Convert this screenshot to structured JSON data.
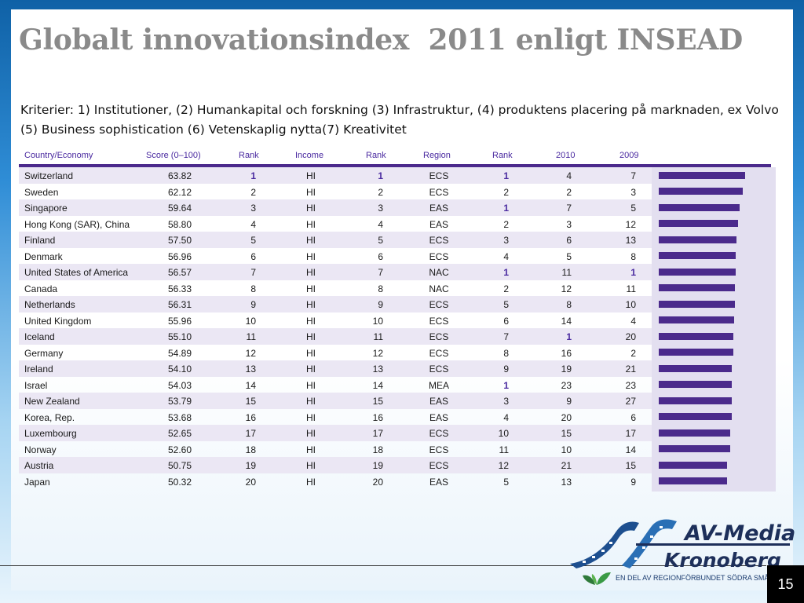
{
  "title": "Globalt innovationsindex  2011 enligt INSEAD",
  "criteria": "Kriterier: 1) Institutioner, (2) Humankapital och forskning (3) Infrastruktur, (4) produktens placering på marknaden, ex Volvo  (5) Business sophistication (6) Vetenskaplig nytta(7) Kreativitet",
  "table": {
    "headers": [
      "Country/Economy",
      "Score (0–100)",
      "Rank",
      "Income",
      "Rank",
      "Region",
      "Rank",
      "2010",
      "2009"
    ],
    "rows": [
      {
        "country": "Switzerland",
        "score": "63.82",
        "rank": "1",
        "income": "HI",
        "income_rank": "1",
        "region": "ECS",
        "region_rank": "1",
        "y2010": "4",
        "y2009": "7"
      },
      {
        "country": "Sweden",
        "score": "62.12",
        "rank": "2",
        "income": "HI",
        "income_rank": "2",
        "region": "ECS",
        "region_rank": "2",
        "y2010": "2",
        "y2009": "3"
      },
      {
        "country": "Singapore",
        "score": "59.64",
        "rank": "3",
        "income": "HI",
        "income_rank": "3",
        "region": "EAS",
        "region_rank": "1",
        "y2010": "7",
        "y2009": "5"
      },
      {
        "country": "Hong Kong (SAR), China",
        "score": "58.80",
        "rank": "4",
        "income": "HI",
        "income_rank": "4",
        "region": "EAS",
        "region_rank": "2",
        "y2010": "3",
        "y2009": "12"
      },
      {
        "country": "Finland",
        "score": "57.50",
        "rank": "5",
        "income": "HI",
        "income_rank": "5",
        "region": "ECS",
        "region_rank": "3",
        "y2010": "6",
        "y2009": "13"
      },
      {
        "country": "Denmark",
        "score": "56.96",
        "rank": "6",
        "income": "HI",
        "income_rank": "6",
        "region": "ECS",
        "region_rank": "4",
        "y2010": "5",
        "y2009": "8"
      },
      {
        "country": "United States of America",
        "score": "56.57",
        "rank": "7",
        "income": "HI",
        "income_rank": "7",
        "region": "NAC",
        "region_rank": "1",
        "y2010": "11",
        "y2009": "1"
      },
      {
        "country": "Canada",
        "score": "56.33",
        "rank": "8",
        "income": "HI",
        "income_rank": "8",
        "region": "NAC",
        "region_rank": "2",
        "y2010": "12",
        "y2009": "11"
      },
      {
        "country": "Netherlands",
        "score": "56.31",
        "rank": "9",
        "income": "HI",
        "income_rank": "9",
        "region": "ECS",
        "region_rank": "5",
        "y2010": "8",
        "y2009": "10"
      },
      {
        "country": "United Kingdom",
        "score": "55.96",
        "rank": "10",
        "income": "HI",
        "income_rank": "10",
        "region": "ECS",
        "region_rank": "6",
        "y2010": "14",
        "y2009": "4"
      },
      {
        "country": "Iceland",
        "score": "55.10",
        "rank": "11",
        "income": "HI",
        "income_rank": "11",
        "region": "ECS",
        "region_rank": "7",
        "y2010": "1",
        "y2009": "20"
      },
      {
        "country": "Germany",
        "score": "54.89",
        "rank": "12",
        "income": "HI",
        "income_rank": "12",
        "region": "ECS",
        "region_rank": "8",
        "y2010": "16",
        "y2009": "2"
      },
      {
        "country": "Ireland",
        "score": "54.10",
        "rank": "13",
        "income": "HI",
        "income_rank": "13",
        "region": "ECS",
        "region_rank": "9",
        "y2010": "19",
        "y2009": "21"
      },
      {
        "country": "Israel",
        "score": "54.03",
        "rank": "14",
        "income": "HI",
        "income_rank": "14",
        "region": "MEA",
        "region_rank": "1",
        "y2010": "23",
        "y2009": "23"
      },
      {
        "country": "New Zealand",
        "score": "53.79",
        "rank": "15",
        "income": "HI",
        "income_rank": "15",
        "region": "EAS",
        "region_rank": "3",
        "y2010": "9",
        "y2009": "27"
      },
      {
        "country": "Korea, Rep.",
        "score": "53.68",
        "rank": "16",
        "income": "HI",
        "income_rank": "16",
        "region": "EAS",
        "region_rank": "4",
        "y2010": "20",
        "y2009": "6"
      },
      {
        "country": "Luxembourg",
        "score": "52.65",
        "rank": "17",
        "income": "HI",
        "income_rank": "17",
        "region": "ECS",
        "region_rank": "10",
        "y2010": "15",
        "y2009": "17"
      },
      {
        "country": "Norway",
        "score": "52.60",
        "rank": "18",
        "income": "HI",
        "income_rank": "18",
        "region": "ECS",
        "region_rank": "11",
        "y2010": "10",
        "y2009": "14"
      },
      {
        "country": "Austria",
        "score": "50.75",
        "rank": "19",
        "income": "HI",
        "income_rank": "19",
        "region": "ECS",
        "region_rank": "12",
        "y2010": "21",
        "y2009": "15"
      },
      {
        "country": "Japan",
        "score": "50.32",
        "rank": "20",
        "income": "HI",
        "income_rank": "20",
        "region": "EAS",
        "region_rank": "5",
        "y2010": "13",
        "y2009": "9"
      }
    ]
  },
  "colors": {
    "accent": "#4b2a8c",
    "stripe": "#ebe7f4",
    "highlight": "#4a2aa0",
    "title": "#8a8a8a"
  },
  "logo": {
    "line1": "AV-Media",
    "line2": "Kronoberg",
    "tagline": "EN DEL AV REGIONFÖRBUNDET SÖDRA SMÅLAND"
  },
  "icons": [
    "film-strip-logo-icon",
    "leaves-icon"
  ],
  "page_number": "15"
}
